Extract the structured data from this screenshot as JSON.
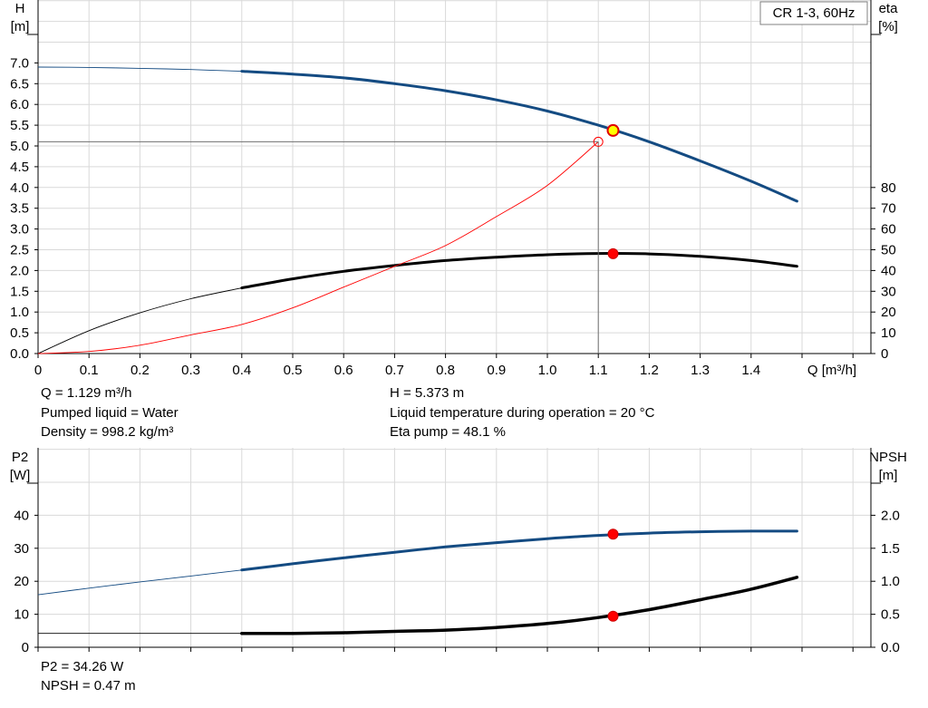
{
  "chart_data": [
    {
      "type": "line",
      "title": "CR 1-3, 60Hz",
      "xlabel": "Q [m³/h]",
      "x_ticks": [
        "0",
        "0.1",
        "0.2",
        "0.3",
        "0.4",
        "0.5",
        "0.6",
        "0.7",
        "0.8",
        "0.9",
        "1.0",
        "1.1",
        "1.2",
        "1.3",
        "1.4"
      ],
      "xlim": [
        0,
        1.6
      ],
      "left_axis": {
        "label_line1": "H",
        "label_line2": "[m]",
        "ylim": [
          0,
          8.2
        ],
        "ticks": [
          "0.0",
          "0.5",
          "1.0",
          "1.5",
          "2.0",
          "2.5",
          "3.0",
          "3.5",
          "4.0",
          "4.5",
          "5.0",
          "5.5",
          "6.0",
          "6.5",
          "7.0"
        ]
      },
      "right_axis": {
        "label_line1": "eta",
        "label_line2": "[%]",
        "ylim": [
          0,
          164
        ],
        "ticks": [
          "0",
          "10",
          "20",
          "30",
          "40",
          "50",
          "60",
          "70",
          "80"
        ]
      },
      "series": [
        {
          "key": "H",
          "axis": "left",
          "color": "#144b82",
          "x": [
            0,
            0.1,
            0.2,
            0.3,
            0.4,
            0.5,
            0.6,
            0.7,
            0.8,
            0.9,
            1.0,
            1.1,
            1.2,
            1.3,
            1.4,
            1.49
          ],
          "y": [
            6.9,
            6.89,
            6.87,
            6.84,
            6.8,
            6.73,
            6.64,
            6.5,
            6.33,
            6.11,
            5.84,
            5.5,
            5.1,
            4.64,
            4.15,
            3.67
          ],
          "bold_from": 0.4
        },
        {
          "key": "eta",
          "axis": "right",
          "color": "#000000",
          "x": [
            0,
            0.1,
            0.2,
            0.3,
            0.4,
            0.5,
            0.6,
            0.7,
            0.8,
            0.9,
            1.0,
            1.1,
            1.2,
            1.3,
            1.4,
            1.49
          ],
          "y": [
            0,
            11,
            19.6,
            26.4,
            31.6,
            36,
            39.6,
            42.4,
            44.8,
            46.4,
            47.6,
            48.2,
            48,
            46.8,
            44.8,
            42
          ],
          "bold_from": 0.4
        },
        {
          "key": "system",
          "axis": "left",
          "color": "#ff0000",
          "x": [
            0,
            0.1,
            0.2,
            0.3,
            0.4,
            0.5,
            0.6,
            0.7,
            0.8,
            0.9,
            1.0,
            1.1
          ],
          "y": [
            0,
            0.05,
            0.2,
            0.45,
            0.7,
            1.1,
            1.6,
            2.1,
            2.6,
            3.3,
            4.05,
            5.1
          ],
          "thin": true
        }
      ],
      "operating_point": {
        "x": 1.129,
        "h": 5.373,
        "eta": 48.1
      },
      "required_point": {
        "x": 1.1,
        "h": 5.1
      }
    },
    {
      "type": "line",
      "xlim": [
        0,
        1.6
      ],
      "left_axis": {
        "label_line1": "P2",
        "label_line2": "[W]",
        "ylim": [
          0,
          49
        ],
        "ticks": [
          "0",
          "10",
          "20",
          "30",
          "40"
        ]
      },
      "right_axis": {
        "label_line1": "NPSH",
        "label_line2": "[m]",
        "ylim": [
          0,
          2.45
        ],
        "ticks": [
          "0.0",
          "0.5",
          "1.0",
          "1.5",
          "2.0"
        ]
      },
      "series": [
        {
          "key": "P2",
          "axis": "left",
          "color": "#144b82",
          "x": [
            0,
            0.1,
            0.2,
            0.3,
            0.4,
            0.5,
            0.6,
            0.7,
            0.8,
            0.9,
            1.0,
            1.1,
            1.2,
            1.3,
            1.4,
            1.49
          ],
          "y": [
            15.9,
            17.9,
            19.8,
            21.6,
            23.4,
            25.3,
            27.1,
            28.8,
            30.4,
            31.7,
            32.9,
            33.9,
            34.6,
            35.0,
            35.2,
            35.2
          ],
          "bold_from": 0.4
        },
        {
          "key": "NPSH",
          "axis": "right",
          "color": "#000000",
          "x": [
            0,
            0.1,
            0.2,
            0.3,
            0.4,
            0.5,
            0.6,
            0.7,
            0.8,
            0.9,
            1.0,
            1.1,
            1.2,
            1.3,
            1.4,
            1.49
          ],
          "y": [
            0.21,
            0.21,
            0.21,
            0.21,
            0.21,
            0.21,
            0.22,
            0.24,
            0.26,
            0.3,
            0.36,
            0.45,
            0.57,
            0.72,
            0.88,
            1.06
          ],
          "bold_from": 0.4,
          "thick": true
        }
      ],
      "operating_point": {
        "x": 1.129,
        "p2": 34.26,
        "npsh": 0.47
      }
    }
  ],
  "info": {
    "q": "Q = 1.129 m³/h",
    "liquid": "Pumped liquid = Water",
    "density": "Density = 998.2 kg/m³",
    "h": "H = 5.373 m",
    "temperature": "Liquid temperature during operation = 20 °C",
    "eta": "Eta pump = 48.1 %",
    "p2": "P2 = 34.26 W",
    "npsh": "NPSH = 0.47 m"
  }
}
